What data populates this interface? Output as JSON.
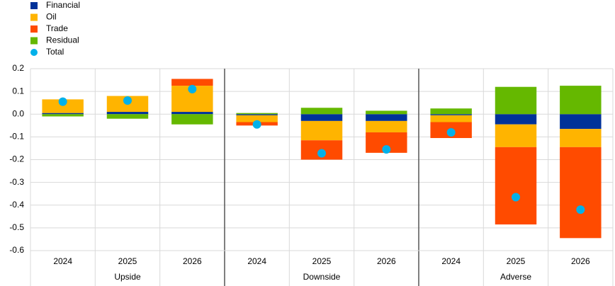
{
  "chart_data": {
    "type": "stacked-bar",
    "groups": [
      {
        "name": "Upside",
        "categories": [
          "2024",
          "2025",
          "2026"
        ]
      },
      {
        "name": "Downside",
        "categories": [
          "2024",
          "2025",
          "2026"
        ]
      },
      {
        "name": "Adverse",
        "categories": [
          "2024",
          "2025",
          "2026"
        ]
      }
    ],
    "series": [
      {
        "name": "Financial",
        "color": "#003299",
        "values": [
          0.005,
          0.01,
          0.01,
          -0.005,
          -0.03,
          -0.03,
          -0.005,
          -0.045,
          -0.065
        ]
      },
      {
        "name": "Oil",
        "color": "#ffb400",
        "values": [
          0.06,
          0.07,
          0.115,
          -0.03,
          -0.085,
          -0.05,
          -0.03,
          -0.1,
          -0.08
        ]
      },
      {
        "name": "Trade",
        "color": "#ff4b00",
        "values": [
          0,
          0,
          0.03,
          -0.015,
          -0.085,
          -0.09,
          -0.07,
          -0.34,
          -0.4
        ]
      },
      {
        "name": "Residual",
        "color": "#65b800",
        "values": [
          -0.01,
          -0.02,
          -0.045,
          0.005,
          0.028,
          0.015,
          0.025,
          0.12,
          0.125
        ]
      }
    ],
    "total": {
      "name": "Total",
      "color": "#00b1ea",
      "values": [
        0.055,
        0.06,
        0.11,
        -0.045,
        -0.172,
        -0.155,
        -0.08,
        -0.365,
        -0.42
      ]
    },
    "ylim": [
      -0.6,
      0.2
    ],
    "yticks": [
      0.2,
      0.1,
      {
        "value": 0,
        "label": "0.0"
      },
      -0.1,
      -0.2,
      -0.3,
      -0.4,
      -0.5,
      -0.6
    ],
    "grid": true
  }
}
